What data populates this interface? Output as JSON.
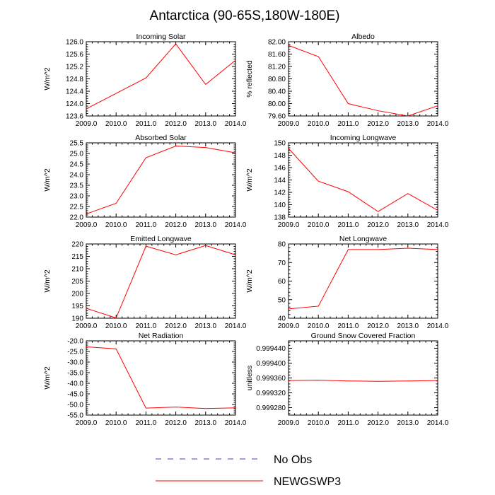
{
  "title": "Antarctica (90-65S,180W-180E)",
  "legend": [
    {
      "label": "No Obs",
      "style": "dashed",
      "color": "#3b3bd6"
    },
    {
      "label": "NEWGSWP3",
      "style": "solid",
      "color": "#ff0000"
    }
  ],
  "colors": {
    "series": "#ff0000",
    "axis": "#000000"
  },
  "chart_data": [
    {
      "type": "line",
      "title": "Incoming Solar",
      "ylabel": "W/m^2",
      "x": [
        2009,
        2010,
        2011,
        2012,
        2013,
        2014
      ],
      "xticks": [
        "2009.0",
        "2010.0",
        "2011.0",
        "2012.0",
        "2013.0",
        "2014.0"
      ],
      "xlim": [
        2009,
        2014
      ],
      "ylim": [
        123.6,
        126.0
      ],
      "yticks": [
        "123.6",
        "124.0",
        "124.4",
        "124.8",
        "125.2",
        "125.6",
        "126.0"
      ],
      "series": [
        {
          "name": "NEWGSWP3",
          "values": [
            123.83,
            124.33,
            124.83,
            125.93,
            124.62,
            125.4
          ]
        }
      ]
    },
    {
      "type": "line",
      "title": "Albedo",
      "ylabel": "% reflected",
      "x": [
        2009,
        2010,
        2011,
        2012,
        2013,
        2014
      ],
      "xticks": [
        "2009.0",
        "2010.0",
        "2011.0",
        "2012.0",
        "2013.0",
        "2014.0"
      ],
      "xlim": [
        2009,
        2014
      ],
      "ylim": [
        79.6,
        82.0
      ],
      "yticks": [
        "79.60",
        "80.00",
        "80.40",
        "80.80",
        "81.20",
        "81.60",
        "82.00"
      ],
      "series": [
        {
          "name": "NEWGSWP3",
          "values": [
            81.88,
            81.52,
            80.0,
            79.77,
            79.6,
            79.93
          ]
        }
      ]
    },
    {
      "type": "line",
      "title": "Absorbed Solar",
      "ylabel": "W/m^2",
      "x": [
        2009,
        2010,
        2011,
        2012,
        2013,
        2014
      ],
      "xticks": [
        "2009.0",
        "2010.0",
        "2011.0",
        "2012.0",
        "2013.0",
        "2014.0"
      ],
      "xlim": [
        2009,
        2014
      ],
      "ylim": [
        22.0,
        25.5
      ],
      "yticks": [
        "22.0",
        "22.5",
        "23.0",
        "23.5",
        "24.0",
        "24.5",
        "25.0",
        "25.5"
      ],
      "series": [
        {
          "name": "NEWGSWP3",
          "values": [
            22.15,
            22.65,
            24.8,
            25.35,
            25.28,
            25.03
          ]
        }
      ]
    },
    {
      "type": "line",
      "title": "Incoming Longwave",
      "ylabel": "W/m^2",
      "x": [
        2009,
        2010,
        2011,
        2012,
        2013,
        2014
      ],
      "xticks": [
        "2009.0",
        "2010.0",
        "2011.0",
        "2012.0",
        "2013.0",
        "2014.0"
      ],
      "xlim": [
        2009,
        2014
      ],
      "ylim": [
        138,
        150
      ],
      "yticks": [
        "138",
        "140",
        "142",
        "144",
        "146",
        "148",
        "150"
      ],
      "series": [
        {
          "name": "NEWGSWP3",
          "values": [
            149.1,
            143.8,
            142.1,
            138.9,
            141.8,
            139.1
          ]
        }
      ]
    },
    {
      "type": "line",
      "title": "Emitted Longwave",
      "ylabel": "W/m^2",
      "x": [
        2009,
        2010,
        2011,
        2012,
        2013,
        2014
      ],
      "xticks": [
        "2009.0",
        "2010.0",
        "2011.0",
        "2012.0",
        "2013.0",
        "2014.0"
      ],
      "xlim": [
        2009,
        2014
      ],
      "ylim": [
        190,
        220
      ],
      "yticks": [
        "190",
        "195",
        "200",
        "205",
        "210",
        "215",
        "220"
      ],
      "series": [
        {
          "name": "NEWGSWP3",
          "values": [
            194.0,
            190.1,
            219.1,
            215.6,
            219.4,
            215.6
          ]
        }
      ]
    },
    {
      "type": "line",
      "title": "Net Longwave",
      "ylabel": "W/m^2",
      "x": [
        2009,
        2010,
        2011,
        2012,
        2013,
        2014
      ],
      "xticks": [
        "2009.0",
        "2010.0",
        "2011.0",
        "2012.0",
        "2013.0",
        "2014.0"
      ],
      "xlim": [
        2009,
        2014
      ],
      "ylim": [
        40,
        80
      ],
      "yticks": [
        "40",
        "50",
        "60",
        "70",
        "80"
      ],
      "series": [
        {
          "name": "NEWGSWP3",
          "values": [
            45.0,
            46.5,
            77.0,
            77.0,
            77.7,
            77.0
          ]
        }
      ]
    },
    {
      "type": "line",
      "title": "Net Radiation",
      "ylabel": "W/m^2",
      "x": [
        2009,
        2010,
        2011,
        2012,
        2013,
        2014
      ],
      "xticks": [
        "2009.0",
        "2010.0",
        "2011.0",
        "2012.0",
        "2013.0",
        "2014.0"
      ],
      "xlim": [
        2009,
        2014
      ],
      "ylim": [
        -55.0,
        -20.0
      ],
      "yticks": [
        "-55.0",
        "-50.0",
        "-45.0",
        "-40.0",
        "-35.0",
        "-30.0",
        "-25.0",
        "-20.0"
      ],
      "series": [
        {
          "name": "NEWGSWP3",
          "values": [
            -22.8,
            -23.8,
            -51.7,
            -51.2,
            -51.9,
            -51.6
          ]
        }
      ]
    },
    {
      "type": "line",
      "title": "Ground Snow Covered Fraction",
      "ylabel": "unitless",
      "x": [
        2009,
        2010,
        2011,
        2012,
        2013,
        2014
      ],
      "xticks": [
        "2009.0",
        "2010.0",
        "2011.0",
        "2012.0",
        "2013.0",
        "2014.0"
      ],
      "xlim": [
        2009,
        2014
      ],
      "ylim": [
        0.99926,
        0.99946
      ],
      "yticks": [
        "0.999280",
        "0.999320",
        "0.999360",
        "0.999400",
        "0.999440"
      ],
      "series": [
        {
          "name": "NEWGSWP3",
          "values": [
            0.999353,
            0.999354,
            0.999352,
            0.999351,
            0.999352,
            0.999353
          ]
        }
      ]
    }
  ]
}
